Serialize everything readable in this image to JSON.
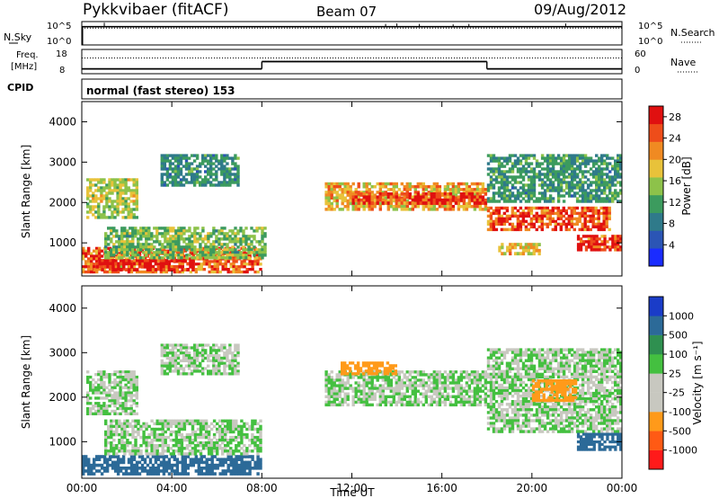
{
  "header": {
    "station": "Pykkvibaer (fitACF)",
    "beam": "Beam 07",
    "date": "09/Aug/2012"
  },
  "noise_panel": {
    "left_label": "N.Sky",
    "right_label": "N.Search",
    "left_ticks": [
      "10^5",
      "10^0"
    ],
    "right_ticks": [
      "10^5",
      "10^0"
    ]
  },
  "freq_panel": {
    "left_label_line1": "Freq.",
    "left_label_line2": "[MHz]",
    "right_label": "Nave",
    "left_ticks": [
      "18",
      "8"
    ],
    "right_ticks": [
      "60",
      "0"
    ]
  },
  "cpid_panel": {
    "label": "CPID",
    "text": "normal (fast stereo) 153"
  },
  "colors": {
    "power_scale": [
      "#1a2cff",
      "#2b55b5",
      "#2f7a8a",
      "#3c9b5e",
      "#8dc24a",
      "#e8c23a",
      "#f08a22",
      "#ee4d1a",
      "#e01010"
    ],
    "velocity_scale": [
      "#ff1a1a",
      "#ff5a14",
      "#ff9a1a",
      "#c8c8c0",
      "#c8c8c0",
      "#44c040",
      "#2f9050",
      "#2c6a98",
      "#1a3cc8"
    ],
    "background": "#ffffff"
  },
  "chart_data": [
    {
      "type": "heatmap",
      "name_hint": "power-panel",
      "ylabel": "Slant Range [km]",
      "xlabel": "",
      "ylim": [
        180,
        4500
      ],
      "yticks": [
        "1000",
        "2000",
        "3000",
        "4000"
      ],
      "colorbar": {
        "label": "Power [dB]",
        "ticks": [
          "4",
          "8",
          "12",
          "16",
          "20",
          "24",
          "28"
        ],
        "range": [
          0,
          30
        ]
      },
      "regions": [
        {
          "t0": 0.0,
          "t1": 8.0,
          "r0": 250,
          "r1": 900,
          "value": 24
        },
        {
          "t0": 0.5,
          "t1": 5.0,
          "r0": 300,
          "r1": 600,
          "value": 29
        },
        {
          "t0": 1.0,
          "t1": 8.2,
          "r0": 600,
          "r1": 1400,
          "value": 14
        },
        {
          "t0": 0.2,
          "t1": 2.5,
          "r0": 1600,
          "r1": 2600,
          "value": 16
        },
        {
          "t0": 3.5,
          "t1": 7.0,
          "r0": 2400,
          "r1": 3200,
          "value": 10
        },
        {
          "t0": 10.8,
          "t1": 18.0,
          "r0": 1800,
          "r1": 2500,
          "value": 20
        },
        {
          "t0": 12.0,
          "t1": 18.0,
          "r0": 1950,
          "r1": 2250,
          "value": 27
        },
        {
          "t0": 18.0,
          "t1": 23.5,
          "r0": 1300,
          "r1": 1900,
          "value": 25
        },
        {
          "t0": 18.0,
          "t1": 24.0,
          "r0": 2000,
          "r1": 3200,
          "value": 11
        },
        {
          "t0": 22.0,
          "t1": 24.0,
          "r0": 800,
          "r1": 1200,
          "value": 27
        },
        {
          "t0": 18.5,
          "t1": 20.5,
          "r0": 700,
          "r1": 1000,
          "value": 18
        }
      ]
    },
    {
      "type": "heatmap",
      "name_hint": "velocity-panel",
      "ylabel": "Slant Range [km]",
      "xlabel": "Time UT",
      "ylim": [
        180,
        4500
      ],
      "yticks": [
        "1000",
        "2000",
        "3000",
        "4000"
      ],
      "xticks": [
        "00:00",
        "04:00",
        "08:00",
        "12:00",
        "16:00",
        "20:00",
        "00:00"
      ],
      "colorbar": {
        "label": "Velocity [m s⁻¹]",
        "ticks": [
          "-1000",
          "-500",
          "-100",
          "-25",
          "25",
          "100",
          "500",
          "1000"
        ]
      },
      "regions": [
        {
          "t0": 0.0,
          "t1": 8.0,
          "r0": 250,
          "r1": 700,
          "value": 250
        },
        {
          "t0": 1.0,
          "t1": 8.0,
          "r0": 700,
          "r1": 1500,
          "value": 0
        },
        {
          "t0": 0.2,
          "t1": 2.5,
          "r0": 1600,
          "r1": 2600,
          "value": 0
        },
        {
          "t0": 3.5,
          "t1": 7.0,
          "r0": 2500,
          "r1": 3200,
          "value": 0
        },
        {
          "t0": 10.8,
          "t1": 18.0,
          "r0": 1800,
          "r1": 2600,
          "value": 0
        },
        {
          "t0": 11.5,
          "t1": 14.0,
          "r0": 2500,
          "r1": 2800,
          "value": -200
        },
        {
          "t0": 18.0,
          "t1": 24.0,
          "r0": 1200,
          "r1": 3100,
          "value": 0
        },
        {
          "t0": 20.0,
          "t1": 22.0,
          "r0": 1900,
          "r1": 2400,
          "value": -150
        },
        {
          "t0": 22.0,
          "t1": 24.0,
          "r0": 800,
          "r1": 1200,
          "value": 300
        }
      ]
    }
  ],
  "noise_series": {
    "sky_level": 0.78,
    "search_level": 0.72,
    "spikes": [
      {
        "t": 1.0,
        "h": 0.95
      },
      {
        "t": 13.5,
        "h": 0.9
      },
      {
        "t": 14.0,
        "h": 0.92
      },
      {
        "t": 15.0,
        "h": 0.9
      },
      {
        "t": 16.5,
        "h": 0.88
      },
      {
        "t": 17.2,
        "h": 0.9
      },
      {
        "t": 21.5,
        "h": 0.92
      }
    ]
  },
  "freq_series": {
    "segments": [
      {
        "t0": 0.0,
        "t1": 8.0,
        "level": 0.2
      },
      {
        "t0": 8.0,
        "t1": 18.0,
        "level": 0.5
      },
      {
        "t0": 18.0,
        "t1": 24.0,
        "level": 0.2
      }
    ],
    "nave_dotted_level": 0.65
  }
}
